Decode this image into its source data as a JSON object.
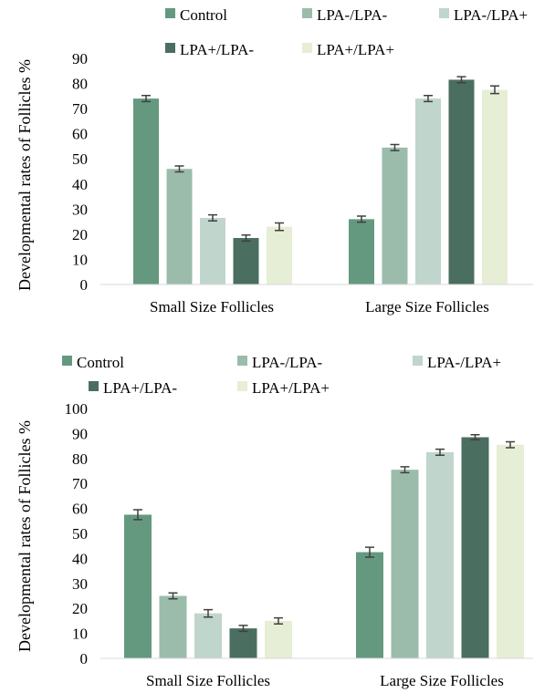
{
  "chart_data": [
    {
      "type": "bar",
      "categories": [
        "Small Size Follicles",
        "Large Size Follicles"
      ],
      "ylabel": "Developmental rates of Follicles %",
      "ylim": [
        0,
        90
      ],
      "yticks": [
        0,
        10,
        20,
        30,
        40,
        50,
        60,
        70,
        80,
        90
      ],
      "grid": false,
      "legend_position": "top",
      "series": [
        {
          "name": "Control",
          "color": "#64997f",
          "values": [
            74,
            26
          ],
          "errors": [
            1.2,
            1.2
          ]
        },
        {
          "name": "LPA-/LPA-",
          "color": "#9bbcab",
          "values": [
            46,
            54.5
          ],
          "errors": [
            1.2,
            1.2
          ]
        },
        {
          "name": "LPA-/LPA+",
          "color": "#c0d5cb",
          "values": [
            26.5,
            74
          ],
          "errors": [
            1.2,
            1.2
          ]
        },
        {
          "name": "LPA+/LPA-",
          "color": "#4a6e60",
          "values": [
            18.5,
            81.5
          ],
          "errors": [
            1.2,
            1.2
          ]
        },
        {
          "name": "LPA+/LPA+",
          "color": "#e6eed5",
          "values": [
            23,
            77.5
          ],
          "errors": [
            1.5,
            1.5
          ]
        }
      ]
    },
    {
      "type": "bar",
      "categories": [
        "Small Size Follicles",
        "Large Size Follicles"
      ],
      "ylabel": "Developmental rates of Follicles %",
      "ylim": [
        0,
        100
      ],
      "yticks": [
        0,
        10,
        20,
        30,
        40,
        50,
        60,
        70,
        80,
        90,
        100
      ],
      "grid": false,
      "legend_position": "top",
      "series": [
        {
          "name": "Control",
          "color": "#64997f",
          "values": [
            57.5,
            42.5
          ],
          "errors": [
            2,
            2
          ]
        },
        {
          "name": "LPA-/LPA-",
          "color": "#9bbcab",
          "values": [
            25,
            75.5
          ],
          "errors": [
            1.2,
            1.2
          ]
        },
        {
          "name": "LPA-/LPA+",
          "color": "#c0d5cb",
          "values": [
            18,
            82.5
          ],
          "errors": [
            1.5,
            1.2
          ]
        },
        {
          "name": "LPA+/LPA-",
          "color": "#4a6e60",
          "values": [
            12,
            88.5
          ],
          "errors": [
            1.2,
            1
          ]
        },
        {
          "name": "LPA+/LPA+",
          "color": "#e6eed5",
          "values": [
            15,
            85.5
          ],
          "errors": [
            1.2,
            1.2
          ]
        }
      ]
    }
  ]
}
